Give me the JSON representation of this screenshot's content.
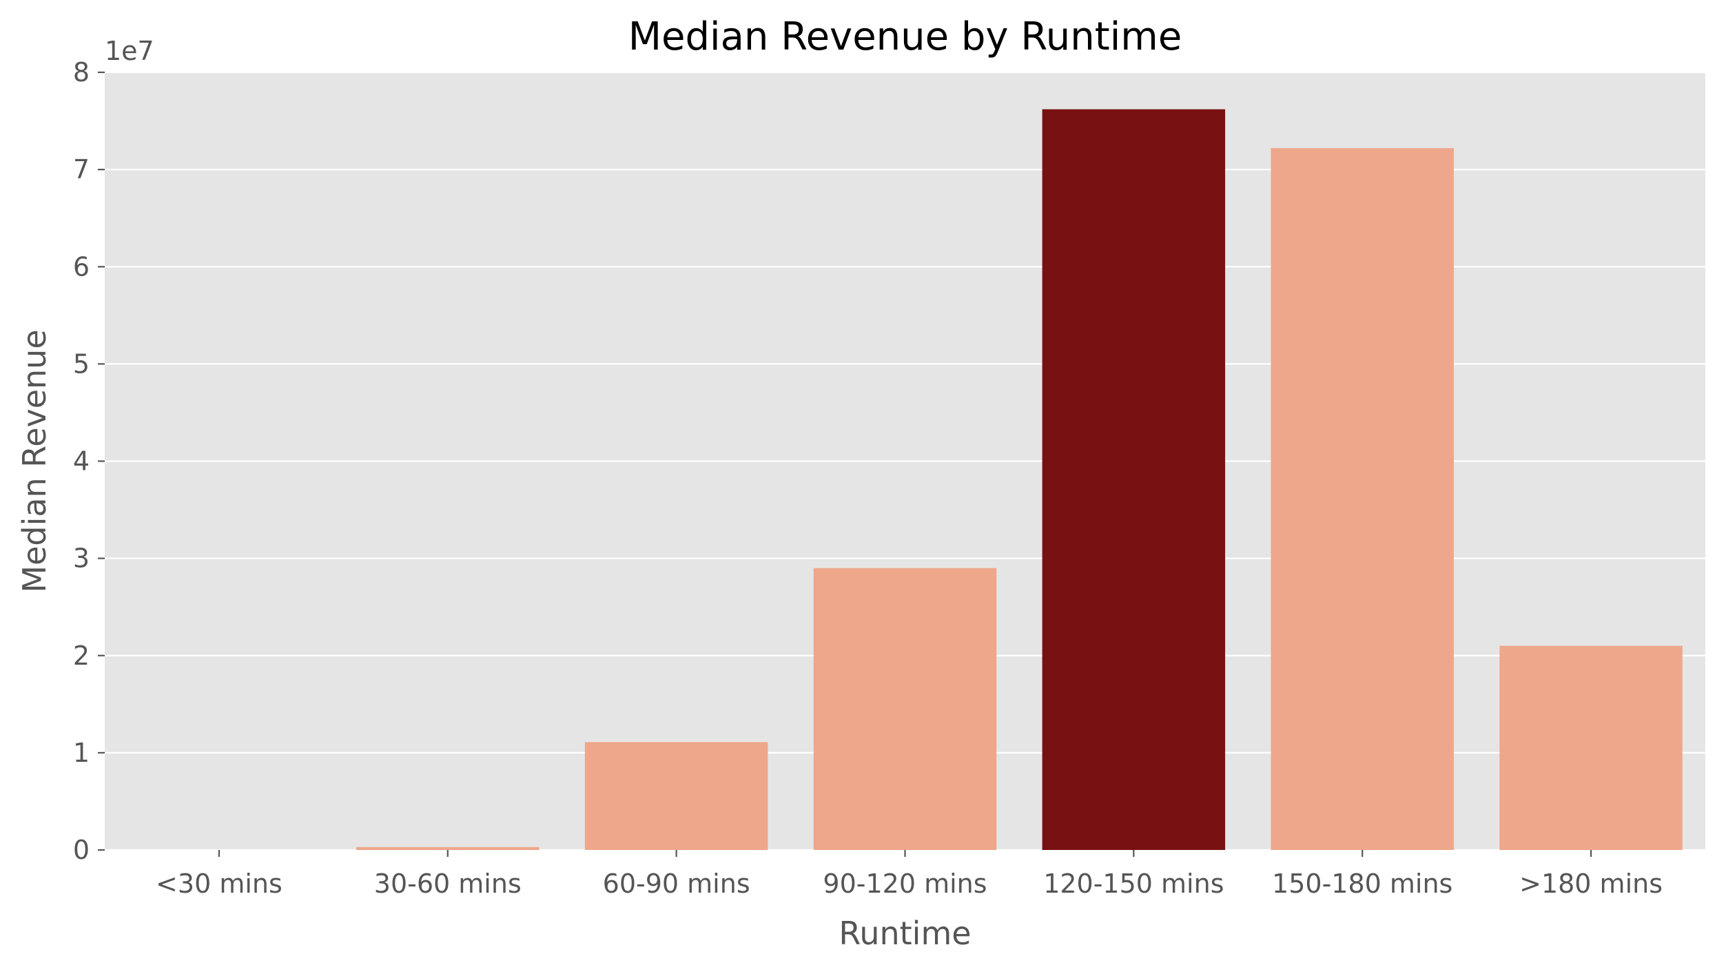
{
  "chart_data": {
    "type": "bar",
    "title": "Median Revenue by Runtime",
    "xlabel": "Runtime",
    "ylabel": "Median Revenue",
    "y_offset_label": "1e7",
    "y_scale": 10000000,
    "ylim": [
      0,
      80000000
    ],
    "yticks": [
      0,
      1,
      2,
      3,
      4,
      5,
      6,
      7,
      8
    ],
    "grid": true,
    "categories": [
      "<30 mins",
      "30-60 mins",
      "60-90 mins",
      "90-120 mins",
      "120-150 mins",
      "150-180 mins",
      ">180 mins"
    ],
    "values": [
      0,
      300000,
      11100000,
      29000000,
      76200000,
      72200000,
      21000000
    ],
    "colors": [
      "#eea78a",
      "#eea78a",
      "#eea78a",
      "#eea78a",
      "#781112",
      "#eea78a",
      "#eea78a"
    ],
    "background": "#e5e5e5",
    "gridline_color": "#ffffff"
  }
}
